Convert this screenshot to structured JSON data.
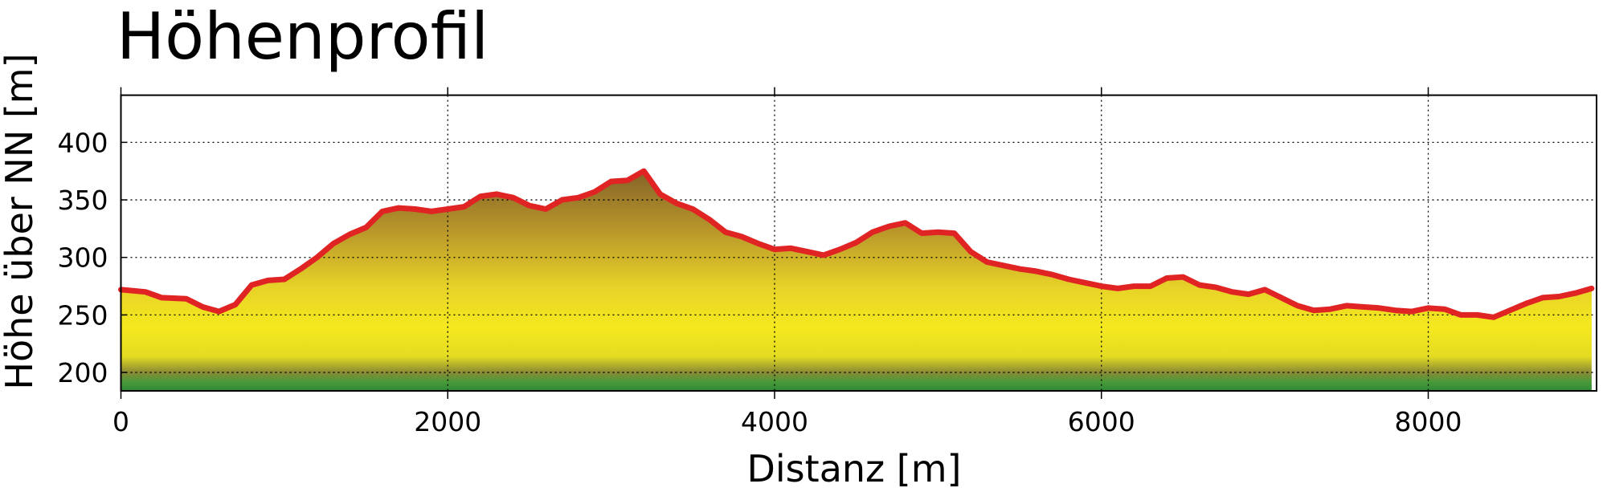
{
  "chart_data": {
    "type": "area",
    "title": "Höhenprofil",
    "x_label": "Distanz [m]",
    "y_label": "Höhe über NN [m]",
    "x": [
      0,
      150,
      250,
      400,
      500,
      600,
      700,
      800,
      900,
      1000,
      1100,
      1200,
      1300,
      1400,
      1500,
      1600,
      1700,
      1800,
      1900,
      2000,
      2100,
      2200,
      2300,
      2400,
      2500,
      2600,
      2700,
      2800,
      2900,
      3000,
      3100,
      3200,
      3300,
      3400,
      3500,
      3600,
      3700,
      3800,
      3900,
      4000,
      4100,
      4200,
      4300,
      4400,
      4500,
      4600,
      4700,
      4800,
      4900,
      5000,
      5100,
      5200,
      5300,
      5400,
      5500,
      5600,
      5700,
      5800,
      5900,
      6000,
      6100,
      6200,
      6300,
      6400,
      6500,
      6600,
      6700,
      6800,
      6900,
      7000,
      7100,
      7200,
      7300,
      7400,
      7500,
      7600,
      7700,
      7800,
      7900,
      8000,
      8100,
      8200,
      8300,
      8400,
      8500,
      8600,
      8700,
      8800,
      8900,
      9000
    ],
    "values": [
      272,
      270,
      265,
      264,
      257,
      253,
      259,
      276,
      280,
      281,
      290,
      300,
      312,
      320,
      326,
      340,
      343,
      342,
      340,
      342,
      344,
      353,
      355,
      352,
      345,
      342,
      350,
      352,
      357,
      366,
      367,
      375,
      355,
      347,
      342,
      333,
      322,
      318,
      312,
      307,
      308,
      305,
      302,
      307,
      313,
      322,
      327,
      330,
      321,
      322,
      321,
      305,
      296,
      293,
      290,
      288,
      285,
      281,
      278,
      275,
      273,
      275,
      275,
      282,
      283,
      276,
      274,
      270,
      268,
      272,
      265,
      258,
      254,
      255,
      258,
      257,
      256,
      254,
      253,
      256,
      255,
      250,
      250,
      248,
      254,
      260,
      265,
      266,
      269,
      273
    ],
    "color": "#e02424",
    "xlim": [
      0,
      9030
    ],
    "ylim": [
      184,
      441
    ],
    "xticks": [
      0,
      2000,
      4000,
      6000,
      8000
    ],
    "yticks": [
      200,
      250,
      300,
      350,
      400
    ],
    "grid": true
  }
}
